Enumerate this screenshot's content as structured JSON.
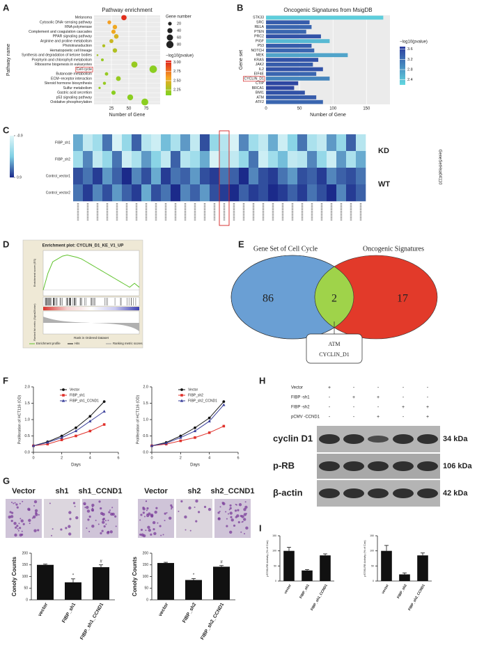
{
  "panel_labels": [
    "A",
    "B",
    "C",
    "D",
    "E",
    "F",
    "G",
    "H",
    "I"
  ],
  "chart_data": [
    {
      "type": "bubble",
      "title": "Pathway enrichment",
      "xlabel": "Number of Gene",
      "ylabel": "Pathway name",
      "categories": [
        "Melanoma",
        "Cytosolic DNA−sensing pathway",
        "RNA polymerase",
        "Complement and coagulation cascades",
        "PPAR signaling pathway",
        "Arginine and proline metabolism",
        "Phototransduction",
        "Hematopoietic cell lineage",
        "Synthesis and degradation of ketone bodies",
        "Porphyrin and chlorophyll metabolism",
        "Ribosome biogenesis in eukaryotes",
        "Cell cycle",
        "Butanoate metabolism",
        "ECM−receptor interaction",
        "Steroid hormone biosynthesis",
        "Sulfur metabolism",
        "Gastric acid secretion",
        "p53 signaling pathway",
        "Oxidative phosphorylation"
      ],
      "values": [
        43,
        22,
        30,
        28,
        32,
        25,
        14,
        30,
        5,
        12,
        58,
        85,
        18,
        35,
        15,
        8,
        28,
        52,
        73
      ],
      "pvalue": [
        3.0,
        2.6,
        2.55,
        2.55,
        2.45,
        2.4,
        2.3,
        2.3,
        2.25,
        2.2,
        2.2,
        2.15,
        2.2,
        2.2,
        2.2,
        2.2,
        2.15,
        2.15,
        2.15
      ],
      "xlim": [
        0,
        95
      ],
      "xticks": [
        25,
        50,
        75
      ],
      "size_legend_title": "Gene number",
      "size_legend": [
        20,
        40,
        60,
        80
      ],
      "color_legend_title": "−log10(pvalue)",
      "color_legend": [
        {
          "value": 3,
          "label": "3.00"
        },
        2.75,
        {
          "value": 2.5,
          "label": "2.50"
        },
        2.25
      ],
      "clim": [
        2.1,
        3.05
      ],
      "colors": [
        "#7ed321",
        "#f5a623",
        "#e0201b"
      ],
      "highlight_index": 11
    },
    {
      "type": "hbar",
      "title": "Oncogenic Signatures from MsigDB",
      "xlabel": "Number of Gene",
      "ylabel": "Gene set",
      "categories": [
        "STK33",
        "SRC",
        "RELA",
        "PTEN",
        "PRC2",
        "PIGF",
        "P53",
        "NOTCH",
        "MEK",
        "KRAS",
        "JAK2",
        "IL2",
        "EIF4E",
        "CYCLIN_D1",
        "CTIP",
        "BRCA1",
        "BMI1",
        "ATM",
        "ATF2"
      ],
      "values": [
        175,
        65,
        68,
        60,
        82,
        95,
        68,
        72,
        122,
        78,
        70,
        85,
        75,
        95,
        48,
        42,
        58,
        75,
        85
      ],
      "pvalue": [
        2.3,
        3.4,
        3.3,
        3.3,
        3.5,
        2.5,
        3.4,
        3.3,
        2.7,
        3.5,
        3.4,
        3.5,
        3.3,
        3.0,
        3.6,
        3.6,
        3.5,
        3.4,
        3.3
      ],
      "xlim": [
        0,
        185
      ],
      "xticks": [
        0,
        50,
        100,
        150
      ],
      "color_legend_title": "−log10(pvalue)",
      "color_legend": [
        3.6,
        3.2,
        2.8,
        2.4
      ],
      "clim": [
        2.2,
        3.7
      ],
      "colors": [
        "#62d8e0",
        "#2b3d9e"
      ],
      "highlight_index": 13
    },
    {
      "type": "line",
      "xlabel": "Days",
      "ylabel": "Proliferation of HCT116 (OD)",
      "x": [
        0,
        1,
        2,
        3,
        4,
        5
      ],
      "xlim": [
        0,
        6
      ],
      "xticks": [
        0,
        2,
        4,
        6
      ],
      "ylim": [
        0,
        2
      ],
      "yticks": [
        {
          "value": 0,
          "label": "0.0"
        },
        0.5,
        {
          "value": 1,
          "label": "1.0"
        },
        1.5,
        {
          "value": 2,
          "label": "2.0"
        }
      ],
      "series": [
        {
          "name": "Vector",
          "color": "#111111",
          "marker": "circle",
          "values": [
            0.2,
            0.32,
            0.5,
            0.75,
            1.1,
            1.55
          ]
        },
        {
          "name": "FIBP_sh1",
          "color": "#e0302a",
          "marker": "square",
          "values": [
            0.2,
            0.25,
            0.38,
            0.5,
            0.65,
            0.85
          ]
        },
        {
          "name": "FIBP_sh1_CCND1",
          "color": "#3a3f9a",
          "marker": "triangle",
          "values": [
            0.2,
            0.3,
            0.45,
            0.65,
            0.95,
            1.25
          ]
        }
      ]
    },
    {
      "type": "line",
      "xlabel": "Days",
      "ylabel": "Proliferation of HCT116 (OD)",
      "x": [
        0,
        1,
        2,
        3,
        4,
        5
      ],
      "xlim": [
        0,
        6
      ],
      "xticks": [
        0,
        2,
        4,
        6
      ],
      "ylim": [
        0,
        2
      ],
      "yticks": [
        {
          "value": 0,
          "label": "0.0"
        },
        0.5,
        {
          "value": 1,
          "label": "1.0"
        },
        1.5,
        {
          "value": 2,
          "label": "2.0"
        }
      ],
      "series": [
        {
          "name": "Vector",
          "color": "#111111",
          "marker": "circle",
          "values": [
            0.2,
            0.3,
            0.5,
            0.75,
            1.05,
            1.55
          ]
        },
        {
          "name": "FIBP_sh2",
          "color": "#e0302a",
          "marker": "square",
          "values": [
            0.2,
            0.25,
            0.35,
            0.45,
            0.6,
            0.8
          ]
        },
        {
          "name": "FIBP_sh2_CCND1",
          "color": "#3a3f9a",
          "marker": "triangle",
          "values": [
            0.2,
            0.28,
            0.45,
            0.65,
            0.95,
            1.45
          ]
        }
      ]
    },
    {
      "type": "bar",
      "ylabel": "Conoly Counts",
      "categories": [
        "vector",
        "FIBP_sh1",
        "FIBP_sh1_CCND1"
      ],
      "values": [
        150,
        75,
        140
      ],
      "errors": [
        3,
        15,
        10
      ],
      "color": "#111111",
      "ylim": [
        0,
        200
      ],
      "yticks": [
        0,
        50,
        100,
        150,
        200
      ],
      "annotations": [
        {
          "index": 1,
          "text": "*"
        },
        {
          "index": 2,
          "text": "#"
        }
      ]
    },
    {
      "type": "bar",
      "ylabel": "Conoly Counts",
      "categories": [
        "vector",
        "FIBP_sh2",
        "FIBP_sh2_CCND1"
      ],
      "values": [
        158,
        85,
        142
      ],
      "errors": [
        3,
        6,
        5
      ],
      "color": "#111111",
      "ylim": [
        0,
        200
      ],
      "yticks": [
        0,
        50,
        100,
        150,
        200
      ],
      "annotations": [
        {
          "index": 1,
          "text": "*"
        },
        {
          "index": 2,
          "text": "#"
        }
      ]
    },
    {
      "type": "bar",
      "ylabel": "pS780-RB Activity (% of Con)",
      "categories": [
        "vector",
        "FIBP_sh1",
        "FIBP_sh1_CCND1"
      ],
      "values": [
        100,
        35,
        85
      ],
      "errors": [
        12,
        3,
        5
      ],
      "color": "#111111",
      "ylim": [
        0,
        150
      ],
      "yticks": [
        0,
        50,
        100,
        150
      ]
    },
    {
      "type": "bar",
      "ylabel": "pS780-RB Activity (% of Con)",
      "categories": [
        "vector",
        "FIBP_sh2",
        "FIBP_sh2_CCND1"
      ],
      "values": [
        100,
        22,
        85
      ],
      "errors": [
        18,
        5,
        8
      ],
      "color": "#111111",
      "ylim": [
        0,
        150
      ],
      "yticks": [
        0,
        50,
        100,
        150
      ]
    }
  ],
  "heatmap": {
    "rows": [
      "FIBP_sh1",
      "FIBP_sh2",
      "Control_vector1",
      "Control_vector2"
    ],
    "groups": [
      "KD",
      "WT"
    ],
    "side_label": "GeneSetHsa04110",
    "legend_ticks": [
      -0.9,
      0.9
    ],
    "clim": [
      -0.9,
      0.9
    ],
    "colors": [
      "#e2f6f8",
      "#7fd0e4",
      "#1b2a8a"
    ],
    "highlight_column": 15,
    "values": [
      [
        0.2,
        -0.6,
        -0.3,
        0.5,
        -0.8,
        -0.2,
        0.6,
        -0.5,
        -0.7,
        0.1,
        -0.4,
        0.3,
        -0.6,
        0.7,
        -0.2,
        -0.5,
        -0.8,
        0.4,
        -0.3,
        -0.6,
        0.2,
        -0.7,
        -0.1,
        0.5,
        -0.4,
        -0.6,
        0.3,
        -0.2,
        0.6,
        -0.5
      ],
      [
        -0.3,
        0.4,
        -0.6,
        -0.2,
        0.5,
        -0.7,
        -0.4,
        0.3,
        -0.1,
        -0.6,
        0.6,
        -0.5,
        -0.3,
        0.2,
        -0.8,
        -0.4,
        -0.6,
        -0.2,
        0.5,
        -0.7,
        -0.3,
        0.1,
        -0.6,
        -0.5,
        0.4,
        -0.2,
        -0.7,
        0.3,
        -0.4,
        0.2
      ],
      [
        0.7,
        0.5,
        0.8,
        0.3,
        0.6,
        0.9,
        0.4,
        0.7,
        0.2,
        0.8,
        0.5,
        0.6,
        0.3,
        0.7,
        0.8,
        0.5,
        0.6,
        0.9,
        0.4,
        0.7,
        0.8,
        0.5,
        0.3,
        0.7,
        0.6,
        0.8,
        0.4,
        0.6,
        0.7,
        0.5
      ],
      [
        0.5,
        0.8,
        0.4,
        0.7,
        0.3,
        0.6,
        0.8,
        0.2,
        0.7,
        0.5,
        0.9,
        0.4,
        0.6,
        0.3,
        0.7,
        0.8,
        0.9,
        0.6,
        0.8,
        0.7,
        0.9,
        0.8,
        0.6,
        0.8,
        0.5,
        0.7,
        0.9,
        0.4,
        0.8,
        0.6
      ]
    ]
  },
  "enrichment": {
    "title": "Enrichment plot: CYCLIN_D1_KE_V1_UP",
    "ylabel": "Enrichment score (ES)",
    "ylabel2": "Ranked list metric (Signal2Noise)",
    "xlabel": "Rank in Ordered Dataset",
    "legend": [
      "Enrichment profile",
      "Hits",
      "Ranking metric scores"
    ],
    "es": [
      0,
      0.3,
      0.5,
      0.55,
      0.6,
      0.62,
      0.6,
      0.58,
      0.55,
      0.5,
      0.45,
      0.4,
      0.35,
      0.3,
      0.25,
      0.2,
      0.15,
      0.1,
      0.05,
      0.12,
      0.05
    ],
    "ylim": [
      -0.1,
      0.7
    ]
  },
  "venn": {
    "sets": [
      {
        "name": "Gene Set of Cell Cycle",
        "count": 86
      },
      {
        "name": "Oncogenic Signatures",
        "count": 17
      }
    ],
    "overlap": 2,
    "overlap_genes": [
      "ATM",
      "CYCLIN_D1"
    ]
  },
  "colony_photos": {
    "left": [
      "Vector",
      "sh1",
      "sh1_CCND1"
    ],
    "right": [
      "Vector",
      "sh2",
      "sh2_CCND1"
    ]
  },
  "western_blot": {
    "conditions": [
      "Vector",
      "FIBP -sh1",
      "FIBP -sh2",
      "pCMV -CCND1"
    ],
    "signs": [
      [
        "+",
        "-",
        "-",
        "-",
        "-"
      ],
      [
        "-",
        "+",
        "+",
        "-",
        "-"
      ],
      [
        "-",
        "-",
        "-",
        "+",
        "+"
      ],
      [
        "-",
        "-",
        "+",
        "-",
        "+"
      ]
    ],
    "bands": [
      "cyclin D1",
      "p-RB",
      "β-actin"
    ],
    "sizes": [
      "34 kDa",
      "106 kDa",
      "42 kDa"
    ]
  }
}
